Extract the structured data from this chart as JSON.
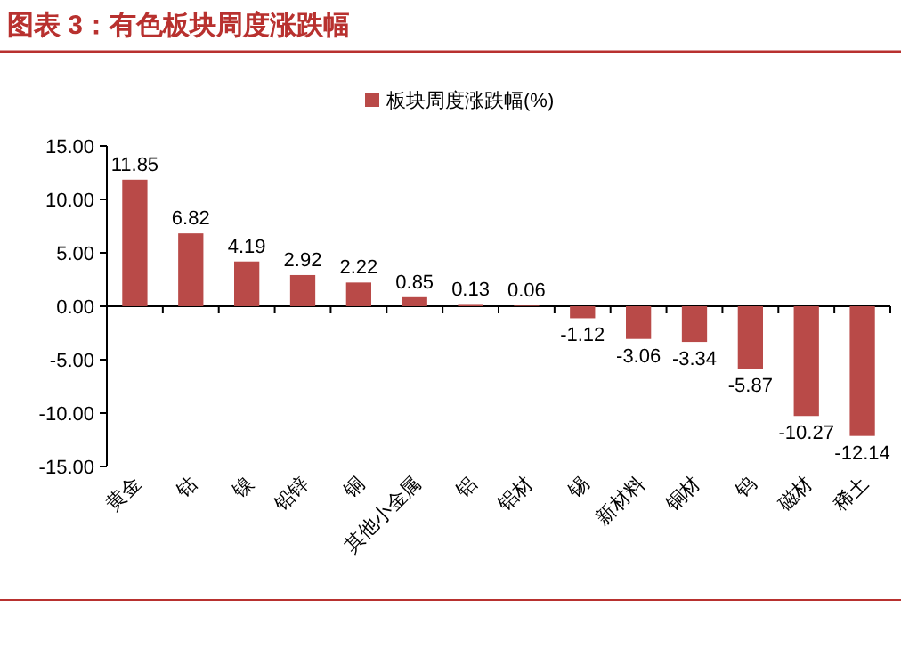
{
  "chart_data": {
    "type": "bar",
    "title": "图表 3：有色板块周度涨跌幅",
    "categories": [
      "黄金",
      "钴",
      "镍",
      "铅锌",
      "铜",
      "其他小金属",
      "铝",
      "铝材",
      "锡",
      "新材料",
      "铜材",
      "钨",
      "磁材",
      "稀土"
    ],
    "series": [
      {
        "name": "板块周度涨跌幅(%)",
        "color": "#b94a48",
        "values": [
          11.85,
          6.82,
          4.19,
          2.92,
          2.22,
          0.85,
          0.13,
          0.06,
          -1.12,
          -3.06,
          -3.34,
          -5.87,
          -10.27,
          -12.14
        ]
      }
    ],
    "ylim": [
      -15,
      15
    ],
    "yticks": [
      {
        "value": 15,
        "label": "15.00"
      },
      {
        "value": 10,
        "label": "10.00"
      },
      {
        "value": 5,
        "label": "5.00"
      },
      {
        "value": 0,
        "label": "0.00"
      },
      {
        "value": -5,
        "label": "-5.00"
      },
      {
        "value": -10,
        "label": "-10.00"
      },
      {
        "value": -15,
        "label": "-15.00"
      }
    ],
    "data_labels": true,
    "legend": "top"
  }
}
